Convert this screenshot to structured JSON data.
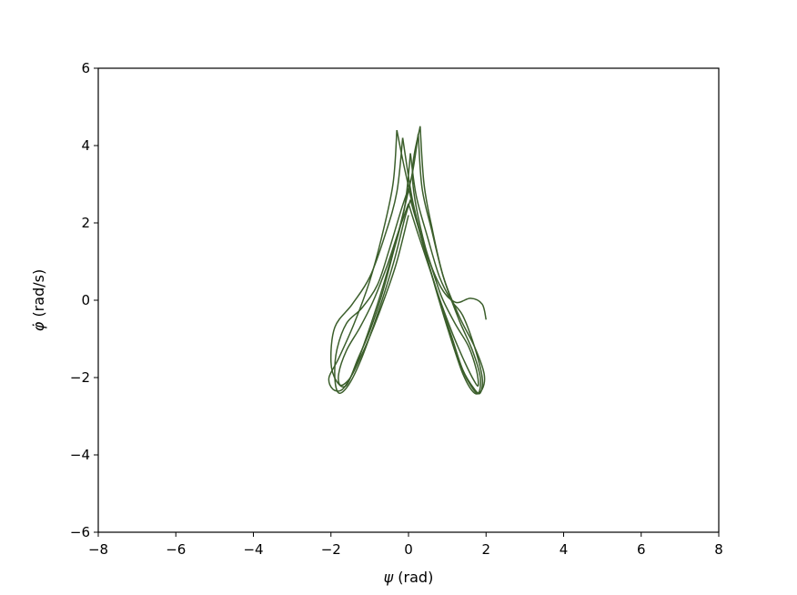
{
  "chart_data": {
    "type": "line",
    "title": "",
    "xlabel_symbol": "ψ",
    "xlabel_unit": " (rad)",
    "ylabel_symbol": "φ̇",
    "ylabel_unit": " (rad/s)",
    "xlim": [
      -8,
      8
    ],
    "ylim": [
      -6,
      6
    ],
    "xticks": [
      -8,
      -6,
      -4,
      -2,
      0,
      2,
      4,
      6,
      8
    ],
    "yticks": [
      -6,
      -4,
      -2,
      0,
      2,
      4,
      6
    ],
    "xtick_labels": [
      "−8",
      "−6",
      "−4",
      "−2",
      "0",
      "2",
      "4",
      "6",
      "8"
    ],
    "ytick_labels": [
      "−6",
      "−4",
      "−2",
      "0",
      "2",
      "4",
      "6"
    ],
    "grid": false,
    "line_color": "#3b5e2b",
    "series": [
      {
        "x": [
          2.0,
          1.9,
          1.6,
          1.2,
          0.8,
          0.4,
          0.1,
          0.3
        ],
        "y": [
          -0.5,
          -0.1,
          0.05,
          -0.05,
          0.4,
          1.5,
          3.2,
          4.5
        ]
      },
      {
        "x": [
          0.3,
          0.4,
          0.6,
          0.9,
          1.3,
          1.7,
          1.95,
          1.9,
          1.7,
          1.4,
          1.1,
          0.8,
          0.5,
          0.2,
          -0.1,
          -0.3
        ],
        "y": [
          4.5,
          3.0,
          1.9,
          0.6,
          -0.4,
          -1.2,
          -1.9,
          -2.3,
          -2.4,
          -1.9,
          -1.0,
          0.0,
          1.0,
          2.1,
          3.4,
          4.4
        ]
      },
      {
        "x": [
          -0.3,
          -0.4,
          -0.7,
          -1.0,
          -1.4,
          -1.8,
          -2.05,
          -1.95,
          -1.7,
          -1.4,
          -1.1,
          -0.8,
          -0.5,
          -0.2,
          0.1,
          0.25
        ],
        "y": [
          4.4,
          3.0,
          1.6,
          0.5,
          -0.6,
          -1.5,
          -2.0,
          -2.3,
          -2.3,
          -1.8,
          -1.0,
          -0.1,
          0.9,
          2.0,
          3.3,
          4.3
        ]
      },
      {
        "x": [
          0.25,
          0.35,
          0.6,
          0.9,
          1.3,
          1.65,
          1.85,
          1.8,
          1.6,
          1.3,
          1.0,
          0.7,
          0.4,
          0.1,
          -0.15
        ],
        "y": [
          4.3,
          2.9,
          1.8,
          0.6,
          -0.5,
          -1.3,
          -2.0,
          -2.4,
          -2.2,
          -1.6,
          -0.7,
          0.3,
          1.4,
          2.6,
          4.2
        ]
      },
      {
        "x": [
          -0.15,
          -0.3,
          -0.6,
          -1.0,
          -1.45,
          -1.9,
          -2.0,
          -1.85,
          -1.6,
          -1.3,
          -1.0,
          -0.7,
          -0.4,
          -0.1,
          0.05
        ],
        "y": [
          4.2,
          2.8,
          1.7,
          0.6,
          -0.1,
          -0.7,
          -1.6,
          -2.1,
          -2.2,
          -1.5,
          -0.8,
          0.1,
          1.2,
          2.4,
          3.8
        ]
      },
      {
        "x": [
          0.05,
          0.2,
          0.5,
          0.8,
          1.1,
          1.4,
          1.7,
          1.9,
          1.85,
          1.7,
          1.4,
          1.1,
          0.8,
          0.5,
          0.2,
          0.0
        ],
        "y": [
          3.8,
          2.7,
          1.6,
          0.6,
          0.0,
          -0.4,
          -1.2,
          -2.0,
          -2.4,
          -2.3,
          -1.8,
          -0.9,
          0.0,
          1.0,
          2.1,
          2.9
        ]
      },
      {
        "x": [
          0.0,
          -0.2,
          -0.5,
          -0.8,
          -1.2,
          -1.6,
          -1.85,
          -1.9,
          -1.8,
          -1.55,
          -1.25,
          -0.95,
          -0.65,
          -0.35,
          -0.1,
          0.05
        ],
        "y": [
          2.9,
          2.3,
          1.3,
          0.4,
          -0.2,
          -0.6,
          -1.3,
          -2.0,
          -2.4,
          -2.2,
          -1.6,
          -0.8,
          0.1,
          1.1,
          2.1,
          2.6
        ]
      },
      {
        "x": [
          0.05,
          0.25,
          0.55,
          0.85,
          1.2,
          1.55,
          1.75,
          1.8,
          1.7,
          1.45,
          1.15,
          0.85,
          0.55,
          0.25,
          0.0
        ],
        "y": [
          2.6,
          1.9,
          1.0,
          0.1,
          -0.6,
          -1.2,
          -1.8,
          -2.2,
          -2.1,
          -1.6,
          -0.9,
          -0.1,
          0.8,
          1.7,
          2.5
        ]
      },
      {
        "x": [
          0.0,
          -0.25,
          -0.55,
          -0.9,
          -1.25,
          -1.6,
          -1.8,
          -1.75,
          -1.5,
          -1.2,
          -0.9,
          -0.6,
          -0.3,
          0.0
        ],
        "y": [
          2.5,
          1.8,
          0.9,
          0.0,
          -0.7,
          -1.3,
          -1.9,
          -2.2,
          -2.0,
          -1.4,
          -0.7,
          0.1,
          1.0,
          2.2
        ]
      }
    ]
  }
}
